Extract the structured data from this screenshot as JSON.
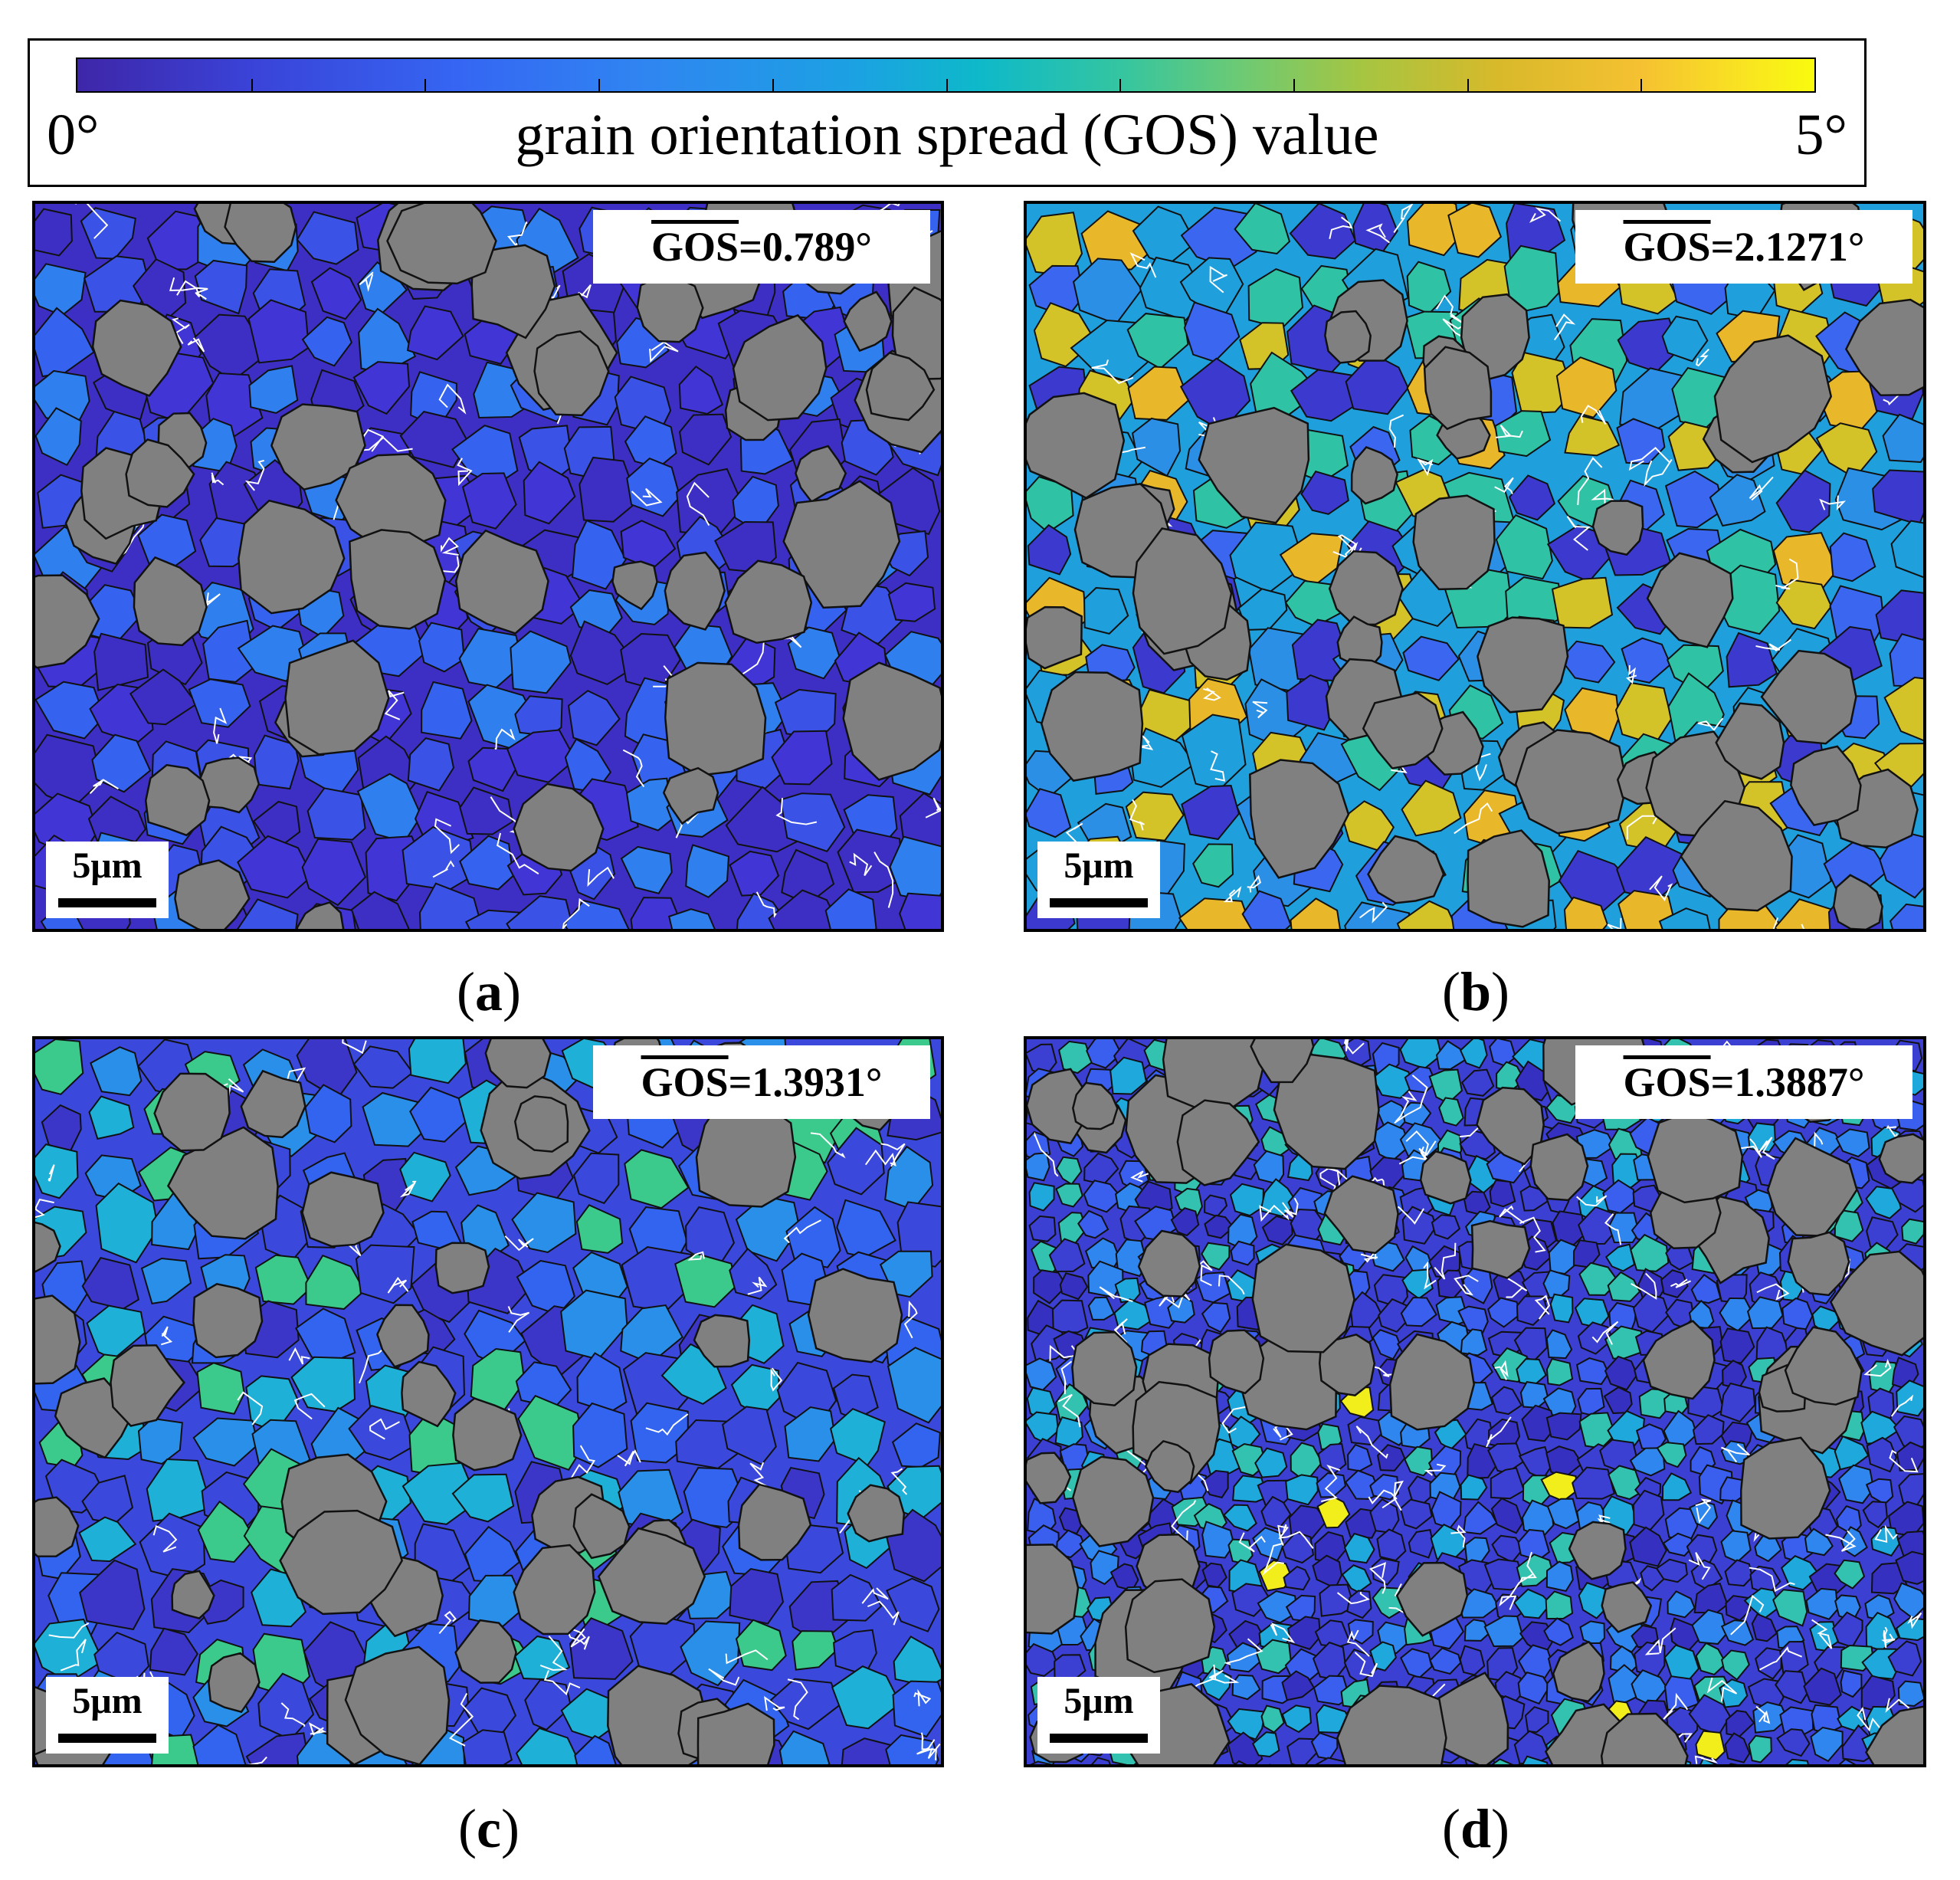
{
  "colorbar": {
    "min_label": "0°",
    "max_label": "5°",
    "title": "grain orientation spread (GOS) value",
    "min_value": 0,
    "max_value": 5,
    "colormap": "parula",
    "tick_count": 10
  },
  "panels": [
    {
      "id": "a",
      "gos_symbol": "GOS",
      "gos_value": "=0.789°",
      "scale": "5μm",
      "caption_open": "(",
      "caption_letter": "a",
      "caption_close": ")",
      "base_color": "#3d2fc4",
      "grain_colors": [
        "#3d2fc4",
        "#4135d6",
        "#3a52e6",
        "#3563ef",
        "#2f7fee"
      ]
    },
    {
      "id": "b",
      "gos_symbol": "GOS",
      "gos_value": "=2.1271°",
      "scale": "5μm",
      "caption_open": "(",
      "caption_letter": "b",
      "caption_close": ")",
      "base_color": "#1fa0dc",
      "grain_colors": [
        "#1fa0dc",
        "#2c8fe6",
        "#3a66f0",
        "#3c39cf",
        "#2fc2a4",
        "#e8b82a",
        "#d4c229"
      ]
    },
    {
      "id": "c",
      "gos_symbol": "GOS",
      "gos_value": "=1.3931°",
      "scale": "5μm",
      "caption_open": "(",
      "caption_letter": "c",
      "caption_close": ")",
      "base_color": "#3a48dc",
      "grain_colors": [
        "#3a48dc",
        "#3c36c8",
        "#3264f0",
        "#2a8fe8",
        "#1eb0d6",
        "#3cc98c"
      ]
    },
    {
      "id": "d",
      "gos_symbol": "GOS",
      "gos_value": "=1.3887°",
      "scale": "5μm",
      "caption_open": "(",
      "caption_letter": "d",
      "caption_close": ")",
      "base_color": "#3b3fd2",
      "grain_colors": [
        "#3b3fd2",
        "#3a5fee",
        "#2f86ef",
        "#1ea8dc",
        "#3530c0",
        "#33c2b0",
        "#f2ee1c"
      ]
    }
  ],
  "particle_color": "#808080",
  "boundary_color": "#111111",
  "lowangle_color": "#ffffff"
}
